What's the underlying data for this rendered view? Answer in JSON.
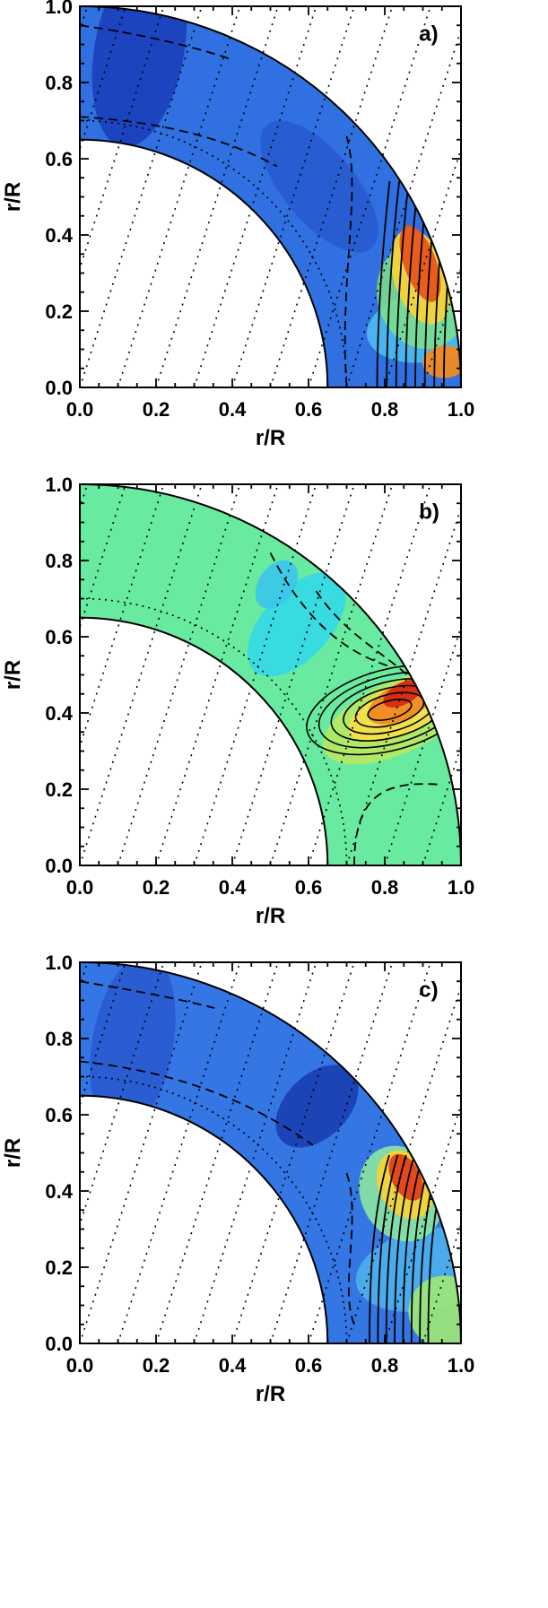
{
  "chart_data": [
    {
      "type": "contour",
      "panel_label": "a)",
      "xlabel": "r/R",
      "ylabel": "r/R",
      "xlim": [
        0,
        1
      ],
      "ylim": [
        0,
        1
      ],
      "xticks": [
        "0.0",
        "0.2",
        "0.4",
        "0.6",
        "0.8",
        "1.0"
      ],
      "yticks": [
        "0.0",
        "0.2",
        "0.4",
        "0.6",
        "0.8",
        "1.0"
      ],
      "inner_radius": 0.65,
      "outer_radius": 1.0,
      "tangent_cylinder_radius": 0.7,
      "iso_rotation_lines": "dotted parallel lines inclined to the rotation axis",
      "field_description": "negative values (blue) over most of the shell, strongest near the pole; positive values (yellow to orange) near the surface at low latitudes",
      "hotspot": {
        "r": 0.93,
        "latitude_deg": 22,
        "color": "#e8551c"
      },
      "colors": {
        "negative": "#2a5ee0",
        "positive_peak": "#e8551c",
        "background_shell": "#2f6bdf"
      }
    },
    {
      "type": "contour",
      "panel_label": "b)",
      "xlabel": "r/R",
      "ylabel": "r/R",
      "xlim": [
        0,
        1
      ],
      "ylim": [
        0,
        1
      ],
      "xticks": [
        "0.0",
        "0.2",
        "0.4",
        "0.6",
        "0.8",
        "1.0"
      ],
      "yticks": [
        "0.0",
        "0.2",
        "0.4",
        "0.6",
        "0.8",
        "1.0"
      ],
      "inner_radius": 0.65,
      "outer_radius": 1.0,
      "tangent_cylinder_radius": 0.7,
      "iso_rotation_lines": "dotted parallel lines inclined to the rotation axis",
      "field_description": "near-zero values (green) over most of the shell; a strong positive lobe (red) near the surface at about 27 degrees latitude and a weaker negative region (cyan) just above it",
      "hotspot": {
        "r": 0.96,
        "latitude_deg": 27,
        "color": "#d42a12"
      },
      "colors": {
        "neutral": "#5fe89a",
        "negative": "#30d8ea",
        "positive_peak": "#d42a12"
      }
    },
    {
      "type": "contour",
      "panel_label": "c)",
      "xlabel": "r/R",
      "ylabel": "r/R",
      "xlim": [
        0,
        1
      ],
      "ylim": [
        0,
        1
      ],
      "xticks": [
        "0.0",
        "0.2",
        "0.4",
        "0.6",
        "0.8",
        "1.0"
      ],
      "yticks": [
        "0.0",
        "0.2",
        "0.4",
        "0.6",
        "0.8",
        "1.0"
      ],
      "inner_radius": 0.65,
      "outer_radius": 1.0,
      "tangent_cylinder_radius": 0.7,
      "iso_rotation_lines": "dotted parallel lines inclined to the rotation axis",
      "field_description": "negative values (blue) over most of the shell, darkest near 0.6-0.7 r/R at mid latitudes; a positive lobe (orange-red) near the surface at about 27 degrees latitude; yellow-green near the equatorial surface",
      "hotspot": {
        "r": 0.96,
        "latitude_deg": 26,
        "color": "#e0401a"
      },
      "colors": {
        "negative": "#2f6bdf",
        "negative_deep": "#1a3fb0",
        "positive_peak": "#e0401a",
        "equator_surface": "#8de07a"
      }
    }
  ]
}
